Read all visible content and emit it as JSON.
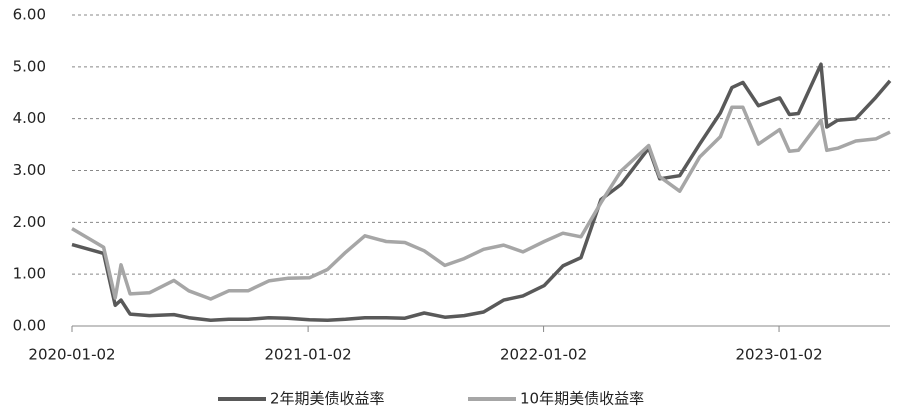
{
  "chart_data": {
    "type": "line",
    "x": [
      "2020-01-02",
      "2020-02-20",
      "2020-03-09",
      "2020-03-18",
      "2020-04-01",
      "2020-05-01",
      "2020-06-08",
      "2020-07-01",
      "2020-08-04",
      "2020-09-01",
      "2020-10-01",
      "2020-11-02",
      "2020-12-01",
      "2021-01-04",
      "2021-02-01",
      "2021-03-01",
      "2021-03-31",
      "2021-05-03",
      "2021-06-01",
      "2021-07-01",
      "2021-08-02",
      "2021-09-01",
      "2021-10-01",
      "2021-11-01",
      "2021-12-01",
      "2022-01-03",
      "2022-02-01",
      "2022-03-01",
      "2022-04-01",
      "2022-05-02",
      "2022-06-14",
      "2022-07-01",
      "2022-08-01",
      "2022-09-01",
      "2022-10-03",
      "2022-10-21",
      "2022-11-07",
      "2022-12-01",
      "2023-01-03",
      "2023-01-18",
      "2023-02-01",
      "2023-03-08",
      "2023-03-17",
      "2023-04-03",
      "2023-05-01",
      "2023-06-01",
      "2023-06-23"
    ],
    "series": [
      {
        "name": "2年期美债收益率",
        "color": "#595959",
        "values": [
          1.57,
          1.4,
          0.4,
          0.5,
          0.23,
          0.2,
          0.22,
          0.16,
          0.11,
          0.13,
          0.13,
          0.16,
          0.15,
          0.12,
          0.11,
          0.13,
          0.16,
          0.16,
          0.15,
          0.25,
          0.17,
          0.2,
          0.27,
          0.5,
          0.58,
          0.78,
          1.16,
          1.32,
          2.44,
          2.73,
          3.43,
          2.84,
          2.9,
          3.51,
          4.11,
          4.6,
          4.7,
          4.25,
          4.4,
          4.08,
          4.1,
          5.05,
          3.84,
          3.97,
          4.0,
          4.41,
          4.73
        ]
      },
      {
        "name": "10年期美债收益率",
        "color": "#a6a6a6",
        "values": [
          1.88,
          1.52,
          0.54,
          1.18,
          0.62,
          0.64,
          0.88,
          0.68,
          0.52,
          0.68,
          0.68,
          0.87,
          0.92,
          0.93,
          1.09,
          1.42,
          1.74,
          1.63,
          1.61,
          1.45,
          1.17,
          1.3,
          1.48,
          1.56,
          1.43,
          1.63,
          1.79,
          1.72,
          2.38,
          2.99,
          3.48,
          2.88,
          2.6,
          3.26,
          3.65,
          4.22,
          4.22,
          3.51,
          3.79,
          3.37,
          3.39,
          3.97,
          3.39,
          3.43,
          3.57,
          3.61,
          3.74
        ]
      }
    ],
    "xlim": [
      "2020-01-02",
      "2023-06-23"
    ],
    "xticks": [
      "2020-01-02",
      "2021-01-02",
      "2022-01-02",
      "2023-01-02"
    ],
    "ylim": [
      0,
      6
    ],
    "yticks": [
      {
        "value": 0,
        "label": "0.00"
      },
      {
        "value": 1,
        "label": "1.00"
      },
      {
        "value": 2,
        "label": "2.00"
      },
      {
        "value": 3,
        "label": "3.00"
      },
      {
        "value": 4,
        "label": "4.00"
      },
      {
        "value": 5,
        "label": "5.00"
      },
      {
        "value": 6,
        "label": "6.00"
      }
    ],
    "grid": true,
    "legend": "bottom"
  }
}
